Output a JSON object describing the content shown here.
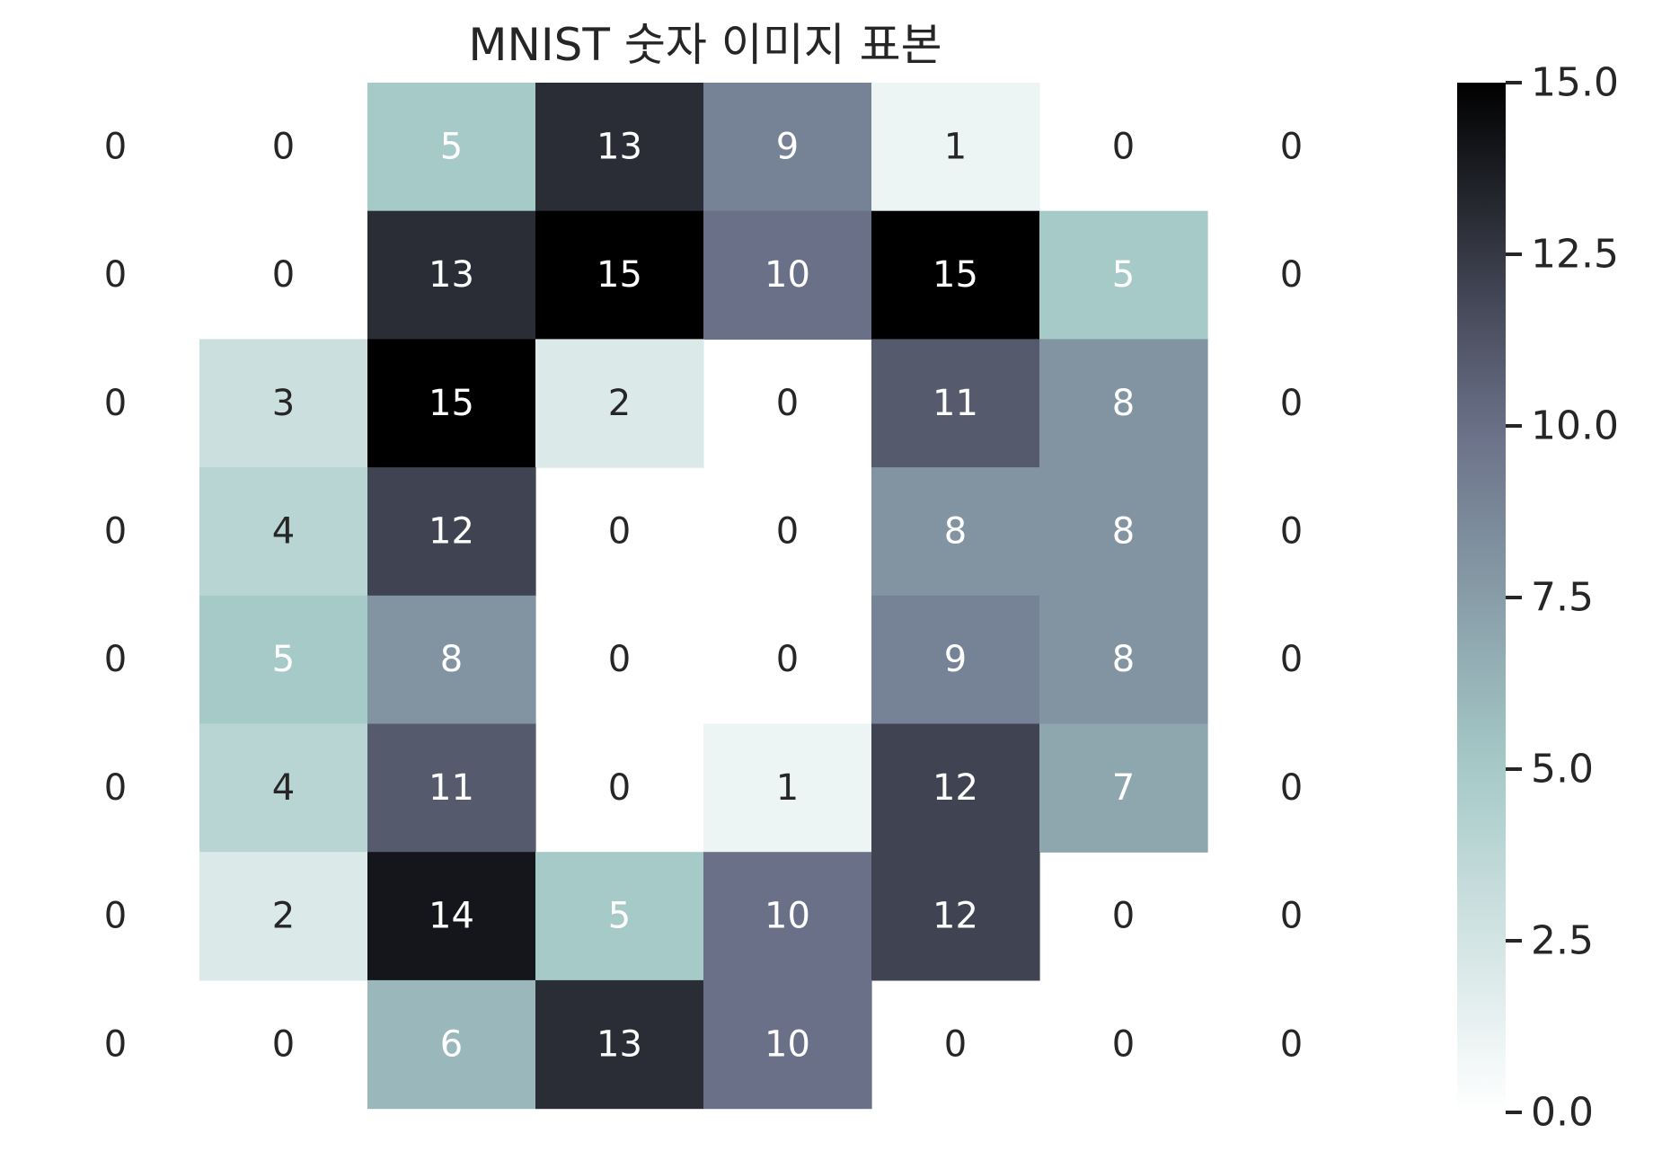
{
  "chart_data": {
    "type": "heatmap",
    "title": "MNIST 숫자 이미지 표본",
    "xlabel": "",
    "ylabel": "",
    "rows": 8,
    "cols": 8,
    "values": [
      [
        0,
        0,
        5,
        13,
        9,
        1,
        0,
        0
      ],
      [
        0,
        0,
        13,
        15,
        10,
        15,
        5,
        0
      ],
      [
        0,
        3,
        15,
        2,
        0,
        11,
        8,
        0
      ],
      [
        0,
        4,
        12,
        0,
        0,
        8,
        8,
        0
      ],
      [
        0,
        5,
        8,
        0,
        0,
        9,
        8,
        0
      ],
      [
        0,
        4,
        11,
        0,
        1,
        12,
        7,
        0
      ],
      [
        0,
        2,
        14,
        5,
        10,
        12,
        0,
        0
      ],
      [
        0,
        0,
        6,
        13,
        10,
        0,
        0,
        0
      ]
    ],
    "annotations": true,
    "mask_zero": true,
    "vmin": 0,
    "vmax": 15,
    "colormap": "bone_r",
    "colormap_stops": [
      "#ffffff",
      "#a6cac8",
      "#6a7088",
      "#000000"
    ],
    "colorbar": {
      "ticks": [
        0.0,
        2.5,
        5.0,
        7.5,
        10.0,
        12.5,
        15.0
      ],
      "tick_labels": [
        "0.0",
        "2.5",
        "5.0",
        "7.5",
        "10.0",
        "12.5",
        "15.0"
      ],
      "position": "right"
    },
    "grid": false
  }
}
